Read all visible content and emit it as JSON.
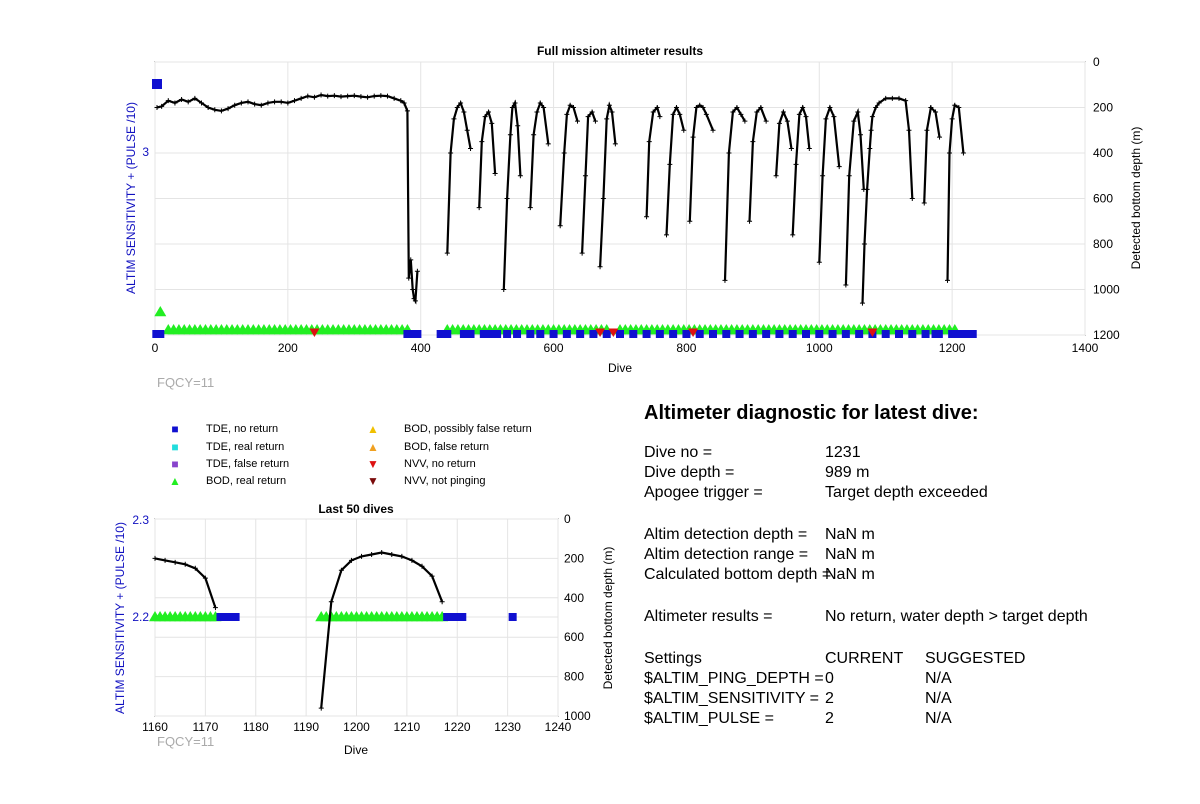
{
  "main_chart": {
    "title": "Full mission altimeter results",
    "xlabel": "Dive",
    "ylabel_left": "ALTIM SENSITIVITY + (PULSE /10)",
    "ylabel_right": "Detected bottom depth (m)",
    "annotation": "FQCY=11",
    "xticks": [
      "0",
      "200",
      "400",
      "600",
      "800",
      "1000",
      "1200",
      "1400"
    ],
    "yticks_left": [
      "3"
    ],
    "yticks_right": [
      "0",
      "200",
      "400",
      "600",
      "800",
      "1000",
      "1200"
    ],
    "colors": {
      "tde_no_return": "#1010d0",
      "bod_real_return": "#22ee22",
      "depth_line": "#000000",
      "nvv_no_return": "#dd1111"
    }
  },
  "small_chart": {
    "title": "Last 50 dives",
    "xlabel": "Dive",
    "ylabel_left": "ALTIM SENSITIVITY + (PULSE /10)",
    "ylabel_right": "Detected bottom depth (m)",
    "annotation": "FQCY=11",
    "xticks": [
      "1160",
      "1170",
      "1180",
      "1190",
      "1200",
      "1210",
      "1220",
      "1230",
      "1240"
    ],
    "yticks_left": [
      "2.3",
      "2.2"
    ],
    "yticks_right": [
      "0",
      "200",
      "400",
      "600",
      "800",
      "1000"
    ]
  },
  "legend": [
    {
      "label": "TDE, no return",
      "symbol": "■",
      "color": "#1010d0"
    },
    {
      "label": "TDE, real return",
      "symbol": "■",
      "color": "#22dddd"
    },
    {
      "label": "TDE, false return",
      "symbol": "■",
      "color": "#8844cc"
    },
    {
      "label": "BOD, real return",
      "symbol": "▲",
      "color": "#22ee22"
    },
    {
      "label": "BOD, possibly false return",
      "symbol": "▲",
      "color": "#f0c000"
    },
    {
      "label": "BOD, false return",
      "symbol": "▲",
      "color": "#f0a020"
    },
    {
      "label": "NVV, no return",
      "symbol": "▼",
      "color": "#dd1111"
    },
    {
      "label": "NVV, not pinging",
      "symbol": "▼",
      "color": "#7a0a0a"
    }
  ],
  "diagnostic": {
    "title": "Altimeter diagnostic for latest dive:",
    "dive_no_label": "Dive no =",
    "dive_no": "1231",
    "dive_depth_label": "Dive depth =",
    "dive_depth": "989 m",
    "apogee_label": "Apogee trigger =",
    "apogee": "Target depth exceeded",
    "det_depth_label": "Altim detection depth =",
    "det_depth": "NaN m",
    "det_range_label": "Altim detection range =",
    "det_range": "NaN m",
    "calc_bottom_label": "Calculated bottom depth =",
    "calc_bottom": "NaN m",
    "results_label": "Altimeter results =",
    "results": "No return, water depth > target depth",
    "settings_label": "Settings",
    "current_label": "CURRENT",
    "suggested_label": "SUGGESTED",
    "ping_depth_label": "$ALTIM_PING_DEPTH =",
    "ping_depth_current": "0",
    "ping_depth_suggested": "N/A",
    "sensitivity_label": "$ALTIM_SENSITIVITY =",
    "sensitivity_current": "2",
    "sensitivity_suggested": "N/A",
    "pulse_label": "$ALTIM_PULSE =",
    "pulse_current": "2",
    "pulse_suggested": "N/A"
  },
  "chart_data": [
    {
      "type": "line",
      "title": "Full mission altimeter results",
      "xlabel": "Dive",
      "ylabel": "Detected bottom depth (m)",
      "xlim": [
        0,
        1400
      ],
      "ylim_right": [
        1200,
        0
      ],
      "series": [
        {
          "name": "Detected bottom depth",
          "x": [
            3,
            10,
            20,
            30,
            40,
            50,
            60,
            70,
            80,
            90,
            100,
            110,
            120,
            130,
            140,
            150,
            160,
            170,
            180,
            190,
            200,
            210,
            220,
            230,
            240,
            250,
            260,
            270,
            280,
            290,
            300,
            310,
            320,
            330,
            340,
            350,
            360,
            370,
            375,
            380,
            382,
            385,
            388,
            390,
            392,
            395
          ],
          "y": [
            200,
            195,
            170,
            180,
            165,
            175,
            160,
            180,
            200,
            210,
            215,
            205,
            190,
            180,
            175,
            185,
            190,
            180,
            175,
            175,
            180,
            170,
            160,
            150,
            155,
            145,
            150,
            148,
            152,
            150,
            148,
            152,
            155,
            150,
            148,
            150,
            160,
            170,
            180,
            215,
            950,
            870,
            1000,
            1040,
            1050,
            920
          ]
        },
        {
          "name": "",
          "x": [
            440,
            445,
            450,
            455,
            460,
            465,
            470,
            475
          ],
          "y": [
            840,
            400,
            250,
            200,
            180,
            220,
            300,
            380
          ]
        },
        {
          "name": "",
          "x": [
            488,
            492,
            497,
            502,
            507,
            512
          ],
          "y": [
            640,
            350,
            240,
            220,
            270,
            490
          ]
        },
        {
          "name": "",
          "x": [
            525,
            530,
            535,
            538,
            542,
            546,
            550
          ],
          "y": [
            1000,
            600,
            320,
            200,
            180,
            280,
            500
          ]
        },
        {
          "name": "",
          "x": [
            565,
            570,
            575,
            580,
            585,
            592
          ],
          "y": [
            640,
            320,
            220,
            180,
            200,
            360
          ]
        },
        {
          "name": "",
          "x": [
            610,
            616,
            620,
            625,
            630,
            636
          ],
          "y": [
            720,
            400,
            230,
            190,
            200,
            260
          ]
        },
        {
          "name": "",
          "x": [
            643,
            648,
            652,
            658,
            663
          ],
          "y": [
            840,
            500,
            240,
            220,
            260
          ]
        },
        {
          "name": "",
          "x": [
            670,
            675,
            680,
            684,
            688,
            693
          ],
          "y": [
            900,
            600,
            250,
            190,
            220,
            360
          ]
        },
        {
          "name": "",
          "x": [
            740,
            744,
            750,
            756,
            760
          ],
          "y": [
            680,
            350,
            220,
            200,
            240
          ]
        },
        {
          "name": "",
          "x": [
            770,
            775,
            780,
            785,
            790,
            796
          ],
          "y": [
            760,
            450,
            230,
            200,
            230,
            300
          ]
        },
        {
          "name": "",
          "x": [
            805,
            810,
            815,
            820,
            825,
            830,
            840
          ],
          "y": [
            700,
            330,
            200,
            190,
            200,
            230,
            300
          ]
        },
        {
          "name": "",
          "x": [
            858,
            864,
            870,
            876,
            882,
            888
          ],
          "y": [
            960,
            400,
            220,
            200,
            230,
            260
          ]
        },
        {
          "name": "",
          "x": [
            895,
            900,
            906,
            912,
            920
          ],
          "y": [
            700,
            350,
            220,
            200,
            260
          ]
        },
        {
          "name": "",
          "x": [
            935,
            940,
            946,
            952,
            958
          ],
          "y": [
            500,
            270,
            220,
            260,
            380
          ]
        },
        {
          "name": "",
          "x": [
            960,
            965,
            970,
            975,
            980,
            985
          ],
          "y": [
            760,
            450,
            230,
            200,
            240,
            380
          ]
        },
        {
          "name": "",
          "x": [
            1000,
            1005,
            1010,
            1016,
            1022,
            1030
          ],
          "y": [
            880,
            500,
            250,
            200,
            240,
            460
          ]
        },
        {
          "name": "",
          "x": [
            1040,
            1045,
            1052,
            1058,
            1062,
            1067
          ],
          "y": [
            980,
            500,
            260,
            220,
            320,
            560
          ]
        },
        {
          "name": "",
          "x": [
            1065,
            1068,
            1072,
            1076,
            1078,
            1080,
            1085,
            1090,
            1100,
            1110,
            1120,
            1130,
            1135,
            1140
          ],
          "y": [
            1060,
            800,
            560,
            380,
            300,
            240,
            200,
            180,
            160,
            160,
            160,
            170,
            300,
            600
          ]
        },
        {
          "name": "",
          "x": [
            1158,
            1162,
            1168,
            1175,
            1181
          ],
          "y": [
            620,
            300,
            200,
            220,
            330
          ]
        },
        {
          "name": "",
          "x": [
            1193,
            1196,
            1200,
            1204,
            1210,
            1217
          ],
          "y": [
            960,
            400,
            250,
            190,
            200,
            400
          ]
        }
      ],
      "tde_no_return_x": [
        2,
        5,
        8,
        380,
        385,
        390,
        395,
        430,
        440,
        465,
        475,
        495,
        505,
        515,
        530,
        545,
        565,
        580,
        600,
        620,
        640,
        660,
        680,
        700,
        720,
        740,
        760,
        780,
        800,
        820,
        840,
        860,
        880,
        900,
        920,
        940,
        960,
        980,
        1000,
        1020,
        1040,
        1060,
        1080,
        1100,
        1120,
        1140,
        1160,
        1175,
        1180,
        1200,
        1210,
        1218,
        1221,
        1231
      ],
      "bod_real_return_x_ranges": [
        [
          20,
          380
        ],
        [
          440,
          680
        ],
        [
          700,
          1210
        ]
      ],
      "nvv_no_return_x": [
        240,
        670,
        690,
        810,
        1080
      ]
    },
    {
      "type": "line",
      "title": "Last 50 dives",
      "xlabel": "Dive",
      "ylabel": "Detected bottom depth (m)",
      "xlim": [
        1160,
        1240
      ],
      "ylim_left": [
        2.1,
        2.3
      ],
      "ylim_right": [
        1000,
        0
      ],
      "series": [
        {
          "name": "",
          "x": [
            1160,
            1162,
            1164,
            1166,
            1168,
            1170,
            1172
          ],
          "y": [
            200,
            210,
            220,
            230,
            250,
            300,
            450
          ]
        },
        {
          "name": "",
          "x": [
            1193,
            1195,
            1197,
            1199,
            1201,
            1203,
            1205,
            1207,
            1209,
            1211,
            1213,
            1215,
            1217
          ],
          "y": [
            960,
            420,
            260,
            210,
            190,
            180,
            170,
            180,
            190,
            210,
            240,
            290,
            420
          ]
        }
      ],
      "bod_real_return_x": [
        1160,
        1161,
        1162,
        1163,
        1164,
        1165,
        1166,
        1167,
        1168,
        1169,
        1170,
        1171,
        1172,
        1193,
        1194,
        1195,
        1196,
        1197,
        1198,
        1199,
        1200,
        1201,
        1202,
        1203,
        1204,
        1205,
        1206,
        1207,
        1208,
        1209,
        1210,
        1211,
        1212,
        1213,
        1214,
        1215,
        1216,
        1217
      ],
      "tde_no_return_x": [
        1173,
        1174,
        1175,
        1176,
        1218,
        1219,
        1220,
        1221,
        1231
      ],
      "marker_level": 2.2
    }
  ]
}
